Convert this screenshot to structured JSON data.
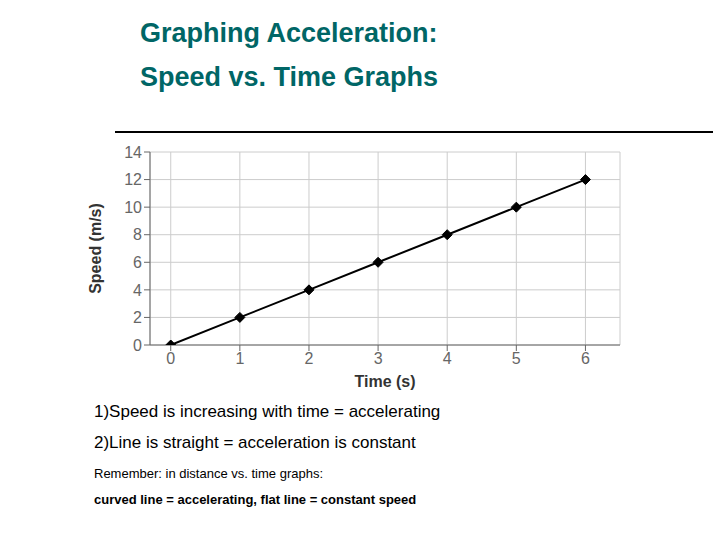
{
  "chart_data": {
    "type": "line",
    "title": "Graphing Acceleration:",
    "subtitle": "Speed vs. Time Graphs",
    "x": [
      0,
      1,
      2,
      3,
      4,
      5,
      6
    ],
    "values": [
      0,
      2,
      4,
      6,
      8,
      10,
      12
    ],
    "x_label": "Time (s)",
    "y_label": "Speed (m/s)",
    "xlim": [
      -0.3,
      6.5
    ],
    "ylim": [
      0,
      14
    ],
    "xticks": [
      0,
      1,
      2,
      3,
      4,
      5,
      6
    ],
    "yticks": [
      0,
      2,
      4,
      6,
      8,
      10,
      12,
      14
    ],
    "color": "#000000",
    "marker": "diamond",
    "grid": true,
    "annotations": [
      "1)Speed is increasing with time = accelerating",
      "2)Line is straight = acceleration is constant",
      "Remember: in distance vs. time graphs:",
      "curved line = accelerating, flat line = constant speed"
    ]
  }
}
